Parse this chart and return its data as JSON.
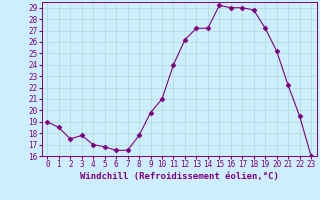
{
  "x": [
    0,
    1,
    2,
    3,
    4,
    5,
    6,
    7,
    8,
    9,
    10,
    11,
    12,
    13,
    14,
    15,
    16,
    17,
    18,
    19,
    20,
    21,
    22,
    23
  ],
  "y": [
    19.0,
    18.5,
    17.5,
    17.8,
    17.0,
    16.8,
    16.5,
    16.5,
    17.8,
    19.8,
    21.0,
    24.0,
    26.2,
    27.2,
    27.2,
    29.2,
    29.0,
    29.0,
    28.8,
    27.2,
    25.2,
    22.2,
    19.5,
    16.0
  ],
  "line_color": "#800080",
  "marker": "D",
  "marker_size": 2.5,
  "bg_color": "#cceeff",
  "grid_color": "#aaddcc",
  "xlabel": "Windchill (Refroidissement éolien,°C)",
  "ylim": [
    16,
    29.5
  ],
  "xlim": [
    -0.5,
    23.5
  ],
  "yticks": [
    16,
    17,
    18,
    19,
    20,
    21,
    22,
    23,
    24,
    25,
    26,
    27,
    28,
    29
  ],
  "xticks": [
    0,
    1,
    2,
    3,
    4,
    5,
    6,
    7,
    8,
    9,
    10,
    11,
    12,
    13,
    14,
    15,
    16,
    17,
    18,
    19,
    20,
    21,
    22,
    23
  ],
  "tick_label_fontsize": 5.5,
  "xlabel_fontsize": 6.5
}
